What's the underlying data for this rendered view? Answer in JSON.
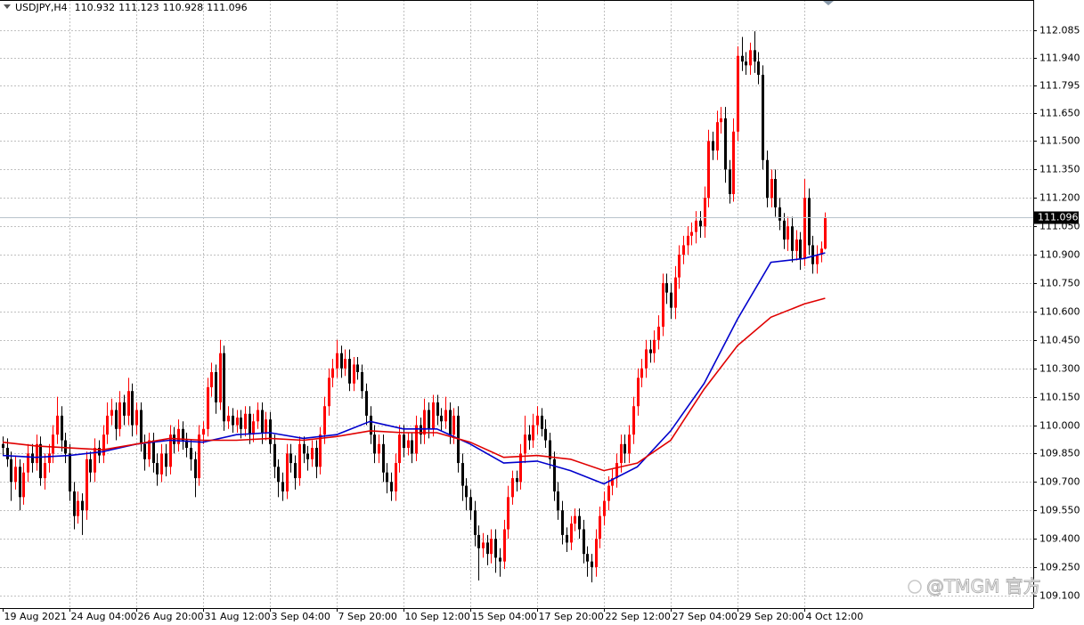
{
  "chart_data": {
    "type": "candlestick",
    "symbol": "USDJPY,H4",
    "header_values": [
      110.932,
      111.123,
      110.928,
      111.096
    ],
    "current_price": 111.096,
    "watermark": "@TMGM 官方",
    "up_color": "#ff0000",
    "down_color": "#000000",
    "grid": true,
    "ylim": [
      109.034,
      112.245
    ],
    "yticks": [
      112.085,
      {
        "value": 111.94,
        "label": "111.940"
      },
      111.795,
      {
        "value": 111.65,
        "label": "111.650"
      },
      {
        "value": 111.5,
        "label": "111.500"
      },
      {
        "value": 111.35,
        "label": "111.350"
      },
      {
        "value": 111.2,
        "label": "111.200"
      },
      {
        "value": 111.05,
        "label": "111.050"
      },
      {
        "value": 110.9,
        "label": "110.900"
      },
      {
        "value": 110.75,
        "label": "110.750"
      },
      {
        "value": 110.6,
        "label": "110.600"
      },
      {
        "value": 110.45,
        "label": "110.450"
      },
      {
        "value": 110.3,
        "label": "110.300"
      },
      {
        "value": 110.15,
        "label": "110.150"
      },
      {
        "value": 110,
        "label": "110.000"
      },
      {
        "value": 109.85,
        "label": "109.850"
      },
      {
        "value": 109.7,
        "label": "109.700"
      },
      {
        "value": 109.55,
        "label": "109.550"
      },
      {
        "value": 109.4,
        "label": "109.400"
      },
      {
        "value": 109.25,
        "label": "109.250"
      },
      {
        "value": 109.1,
        "label": "109.100"
      }
    ],
    "categories": [
      "19 Aug 2021",
      null,
      null,
      null,
      null,
      null,
      null,
      null,
      null,
      null,
      null,
      null,
      null,
      null,
      null,
      null,
      "24 Aug 04:00",
      null,
      null,
      null,
      null,
      null,
      null,
      null,
      null,
      null,
      null,
      null,
      null,
      null,
      null,
      null,
      "26 Aug 20:00",
      null,
      null,
      null,
      null,
      null,
      null,
      null,
      null,
      null,
      null,
      null,
      null,
      null,
      null,
      null,
      "31 Aug 12:00",
      null,
      null,
      null,
      null,
      null,
      null,
      null,
      null,
      null,
      null,
      null,
      null,
      null,
      null,
      null,
      "3 Sep 04:00",
      null,
      null,
      null,
      null,
      null,
      null,
      null,
      null,
      null,
      null,
      null,
      null,
      null,
      null,
      null,
      "7 Sep 20:00",
      null,
      null,
      null,
      null,
      null,
      null,
      null,
      null,
      null,
      null,
      null,
      null,
      null,
      null,
      null,
      "10 Sep 12:00",
      null,
      null,
      null,
      null,
      null,
      null,
      null,
      null,
      null,
      null,
      null,
      null,
      null,
      null,
      null,
      "15 Sep 04:00",
      null,
      null,
      null,
      null,
      null,
      null,
      null,
      null,
      null,
      null,
      null,
      null,
      null,
      null,
      null,
      "17 Sep 20:00",
      null,
      null,
      null,
      null,
      null,
      null,
      null,
      null,
      null,
      null,
      null,
      null,
      null,
      null,
      null,
      "22 Sep 12:00",
      null,
      null,
      null,
      null,
      null,
      null,
      null,
      null,
      null,
      null,
      null,
      null,
      null,
      null,
      null,
      "27 Sep 04:00",
      null,
      null,
      null,
      null,
      null,
      null,
      null,
      null,
      null,
      null,
      null,
      null,
      null,
      null,
      null,
      "29 Sep 20:00",
      null,
      null,
      null,
      null,
      null,
      null,
      null,
      null,
      null,
      null,
      null,
      null,
      null,
      null,
      null,
      "4 Oct 12:00",
      null,
      null,
      null,
      null,
      null
    ],
    "open": [
      109.9,
      109.88,
      109.82,
      109.7,
      109.78,
      109.62,
      109.75,
      109.85,
      109.8,
      109.9,
      109.72,
      109.8,
      109.85,
      109.95,
      110.05,
      109.92,
      109.85,
      109.65,
      109.52,
      109.6,
      109.55,
      109.82,
      109.75,
      109.88,
      109.84,
      109.95,
      110.05,
      110.08,
      109.98,
      110.12,
      110.05,
      110.18,
      110.0,
      110.08,
      109.9,
      109.82,
      109.92,
      109.8,
      109.74,
      109.85,
      109.78,
      109.95,
      109.9,
      109.98,
      109.92,
      109.88,
      109.82,
      109.72,
      109.95,
      109.98,
      110.2,
      110.28,
      110.12,
      110.38,
      110.02,
      110.05,
      110.0,
      110.04,
      109.98,
      110.06,
      109.95,
      110.02,
      110.08,
      109.96,
      110.03,
      109.9,
      109.78,
      109.7,
      109.65,
      109.85,
      109.8,
      109.72,
      109.9,
      109.85,
      109.82,
      109.88,
      109.78,
      109.95,
      110.1,
      110.25,
      110.3,
      110.38,
      110.3,
      110.35,
      110.22,
      110.32,
      110.28,
      110.18,
      110.05,
      109.95,
      109.85,
      109.9,
      109.75,
      109.7,
      109.65,
      109.8,
      109.95,
      109.88,
      109.92,
      109.85,
      110.0,
      109.95,
      110.08,
      109.98,
      110.12,
      110.05,
      110.02,
      110.08,
      109.95,
      110.05,
      109.8,
      109.68,
      109.62,
      109.55,
      109.42,
      109.35,
      109.38,
      109.32,
      109.4,
      109.3,
      109.28,
      109.45,
      109.62,
      109.72,
      109.7,
      109.85,
      109.95,
      109.92,
      110.0,
      110.05,
      109.98,
      109.92,
      109.82,
      109.65,
      109.55,
      109.42,
      109.38,
      109.48,
      109.52,
      109.45,
      109.32,
      109.28,
      109.25,
      109.4,
      109.52,
      109.6,
      109.68,
      109.72,
      109.8,
      109.9,
      109.85,
      109.95,
      110.1,
      110.25,
      110.3,
      110.4,
      110.38,
      110.45,
      110.52,
      110.75,
      110.7,
      110.62,
      110.78,
      110.9,
      110.95,
      111.0,
      111.02,
      111.08,
      111.05,
      111.2,
      111.5,
      111.45,
      111.6,
      111.62,
      111.35,
      111.22,
      111.55,
      111.95,
      111.92,
      111.9,
      111.98,
      111.92,
      111.85,
      111.4,
      111.2,
      111.3,
      111.15,
      111.08,
      110.98,
      111.05,
      110.92,
      110.98,
      110.88,
      111.2,
      110.95,
      110.85,
      110.9,
      110.932
    ],
    "high": [
      109.94,
      109.93,
      109.86,
      109.84,
      109.82,
      109.8,
      109.9,
      109.9,
      109.95,
      109.94,
      109.85,
      109.9,
      110.0,
      110.15,
      110.1,
      109.96,
      109.9,
      109.7,
      109.65,
      109.64,
      109.86,
      109.86,
      109.93,
      109.92,
      110.0,
      110.12,
      110.14,
      110.12,
      110.18,
      110.16,
      110.25,
      110.22,
      110.12,
      110.12,
      109.95,
      109.96,
      109.96,
      109.85,
      109.9,
      109.9,
      110.0,
      109.99,
      110.03,
      110.02,
      109.96,
      109.92,
      109.86,
      110.0,
      110.02,
      110.25,
      110.33,
      110.32,
      110.45,
      110.42,
      110.1,
      110.09,
      110.08,
      110.08,
      110.1,
      110.1,
      110.06,
      110.12,
      110.12,
      110.07,
      110.07,
      109.95,
      109.82,
      109.75,
      109.9,
      109.9,
      109.84,
      109.94,
      109.94,
      109.89,
      109.92,
      109.92,
      109.99,
      110.15,
      110.3,
      110.35,
      110.45,
      110.42,
      110.4,
      110.4,
      110.36,
      110.36,
      110.32,
      110.22,
      110.1,
      110.0,
      109.95,
      109.95,
      109.8,
      109.75,
      109.85,
      110.0,
      110.0,
      109.96,
      109.96,
      110.05,
      110.04,
      110.14,
      110.12,
      110.16,
      110.16,
      110.09,
      110.15,
      110.12,
      110.09,
      110.1,
      109.85,
      109.72,
      109.66,
      109.6,
      109.47,
      109.43,
      109.42,
      109.45,
      109.45,
      109.35,
      109.5,
      109.68,
      109.76,
      109.76,
      109.9,
      110.05,
      110.0,
      110.06,
      110.1,
      110.09,
      110.03,
      109.96,
      109.86,
      109.7,
      109.6,
      109.46,
      109.52,
      109.56,
      109.56,
      109.5,
      109.36,
      109.32,
      109.45,
      109.57,
      109.65,
      109.73,
      109.77,
      109.85,
      109.95,
      109.95,
      110.0,
      110.15,
      110.3,
      110.35,
      110.45,
      110.45,
      110.5,
      110.58,
      110.8,
      110.8,
      110.75,
      110.84,
      110.95,
      111.0,
      111.05,
      111.07,
      111.13,
      111.13,
      111.26,
      111.56,
      111.55,
      111.66,
      111.68,
      111.68,
      111.4,
      111.62,
      112.0,
      112.05,
      111.97,
      112.02,
      112.08,
      111.97,
      111.9,
      111.45,
      111.35,
      111.35,
      111.2,
      111.12,
      111.1,
      111.1,
      111.03,
      111.02,
      111.3,
      111.25,
      111.0,
      110.95,
      110.97,
      111.123
    ],
    "low": [
      109.84,
      109.78,
      109.6,
      109.66,
      109.55,
      109.58,
      109.7,
      109.75,
      109.76,
      109.68,
      109.66,
      109.75,
      109.8,
      109.9,
      109.86,
      109.8,
      109.6,
      109.45,
      109.48,
      109.42,
      109.5,
      109.7,
      109.7,
      109.8,
      109.8,
      109.9,
      110.0,
      109.92,
      109.94,
      110.0,
      110.0,
      109.94,
      109.95,
      109.86,
      109.76,
      109.78,
      109.75,
      109.68,
      109.7,
      109.73,
      109.74,
      109.85,
      109.86,
      109.87,
      109.83,
      109.76,
      109.62,
      109.68,
      109.9,
      109.94,
      110.15,
      110.06,
      110.08,
      109.97,
      109.98,
      109.96,
      109.96,
      109.93,
      109.94,
      109.9,
      109.91,
      109.98,
      109.9,
      109.92,
      109.85,
      109.72,
      109.62,
      109.6,
      109.61,
      109.75,
      109.66,
      109.68,
      109.8,
      109.76,
      109.78,
      109.72,
      109.74,
      109.9,
      110.05,
      110.2,
      110.25,
      110.25,
      110.26,
      110.18,
      110.18,
      110.24,
      110.14,
      110.0,
      109.9,
      109.8,
      109.8,
      109.7,
      109.64,
      109.6,
      109.6,
      109.75,
      109.83,
      109.84,
      109.8,
      109.81,
      109.9,
      109.9,
      109.93,
      109.94,
      110.0,
      109.97,
      109.98,
      109.9,
      109.9,
      109.75,
      109.6,
      109.55,
      109.5,
      109.36,
      109.18,
      109.3,
      109.26,
      109.27,
      109.22,
      109.2,
      109.24,
      109.4,
      109.58,
      109.65,
      109.66,
      109.8,
      109.87,
      109.88,
      109.95,
      109.94,
      109.88,
      109.77,
      109.6,
      109.5,
      109.37,
      109.33,
      109.34,
      109.44,
      109.4,
      109.27,
      109.2,
      109.17,
      109.2,
      109.35,
      109.47,
      109.55,
      109.63,
      109.67,
      109.75,
      109.8,
      109.8,
      109.9,
      110.05,
      110.2,
      110.25,
      110.33,
      110.33,
      110.4,
      110.47,
      110.64,
      110.56,
      110.56,
      110.72,
      110.85,
      110.9,
      110.95,
      110.96,
      110.99,
      110.99,
      111.15,
      111.4,
      111.4,
      111.54,
      111.28,
      111.17,
      111.18,
      111.5,
      111.87,
      111.85,
      111.85,
      111.86,
      111.8,
      111.35,
      111.15,
      111.15,
      111.1,
      111.03,
      110.93,
      110.92,
      110.86,
      110.87,
      110.82,
      110.84,
      110.9,
      110.8,
      110.8,
      110.86,
      110.928
    ],
    "close": [
      109.88,
      109.82,
      109.7,
      109.78,
      109.62,
      109.75,
      109.85,
      109.8,
      109.9,
      109.72,
      109.8,
      109.85,
      109.95,
      110.05,
      109.92,
      109.85,
      109.65,
      109.52,
      109.6,
      109.55,
      109.82,
      109.75,
      109.88,
      109.84,
      109.95,
      110.05,
      110.08,
      109.98,
      110.12,
      110.05,
      110.18,
      110.0,
      110.08,
      109.9,
      109.82,
      109.92,
      109.8,
      109.74,
      109.85,
      109.78,
      109.95,
      109.9,
      109.98,
      109.92,
      109.88,
      109.82,
      109.72,
      109.95,
      109.98,
      110.2,
      110.28,
      110.12,
      110.38,
      110.02,
      110.05,
      110.0,
      110.04,
      109.98,
      110.06,
      109.95,
      110.02,
      110.08,
      109.96,
      110.03,
      109.9,
      109.78,
      109.7,
      109.65,
      109.85,
      109.8,
      109.72,
      109.9,
      109.85,
      109.82,
      109.88,
      109.78,
      109.95,
      110.1,
      110.25,
      110.3,
      110.38,
      110.3,
      110.35,
      110.22,
      110.32,
      110.28,
      110.18,
      110.05,
      109.95,
      109.85,
      109.9,
      109.75,
      109.7,
      109.65,
      109.8,
      109.95,
      109.88,
      109.92,
      109.85,
      110.0,
      109.95,
      110.08,
      109.98,
      110.12,
      110.05,
      110.02,
      110.08,
      109.95,
      110.05,
      109.8,
      109.68,
      109.62,
      109.55,
      109.42,
      109.35,
      109.38,
      109.32,
      109.4,
      109.3,
      109.28,
      109.45,
      109.62,
      109.72,
      109.7,
      109.85,
      109.95,
      109.92,
      110.0,
      110.05,
      109.98,
      109.92,
      109.82,
      109.65,
      109.55,
      109.42,
      109.38,
      109.48,
      109.52,
      109.45,
      109.32,
      109.28,
      109.25,
      109.4,
      109.52,
      109.6,
      109.68,
      109.72,
      109.8,
      109.9,
      109.85,
      109.95,
      110.1,
      110.25,
      110.3,
      110.4,
      110.38,
      110.45,
      110.52,
      110.75,
      110.7,
      110.62,
      110.78,
      110.9,
      110.95,
      111.0,
      111.02,
      111.08,
      111.05,
      111.2,
      111.5,
      111.45,
      111.6,
      111.62,
      111.35,
      111.22,
      111.55,
      111.95,
      111.92,
      111.9,
      111.98,
      111.92,
      111.85,
      111.4,
      111.2,
      111.3,
      111.15,
      111.08,
      110.98,
      111.05,
      110.92,
      110.98,
      110.88,
      111.2,
      110.95,
      110.85,
      110.9,
      110.932,
      111.096
    ],
    "series": [
      {
        "color": "#0000cc",
        "x": [
          0,
          8,
          16,
          24,
          32,
          40,
          48,
          56,
          64,
          72,
          80,
          88,
          96,
          104,
          112,
          120,
          128,
          136,
          144,
          152,
          160,
          168,
          176,
          184,
          192,
          197
        ],
        "values": [
          109.84,
          109.83,
          109.84,
          109.86,
          109.9,
          109.92,
          109.91,
          109.95,
          109.96,
          109.93,
          109.95,
          110.02,
          109.98,
          109.98,
          109.9,
          109.8,
          109.81,
          109.76,
          109.69,
          109.78,
          109.97,
          110.22,
          110.56,
          110.86,
          110.88,
          110.91
        ]
      },
      {
        "color": "#e00000",
        "x": [
          0,
          8,
          16,
          24,
          32,
          40,
          48,
          56,
          64,
          72,
          80,
          88,
          96,
          104,
          112,
          120,
          128,
          136,
          144,
          152,
          160,
          168,
          176,
          184,
          192,
          197
        ],
        "values": [
          109.91,
          109.89,
          109.88,
          109.87,
          109.9,
          109.93,
          109.92,
          109.92,
          109.93,
          109.92,
          109.94,
          109.97,
          109.96,
          109.96,
          109.91,
          109.83,
          109.84,
          109.82,
          109.76,
          109.8,
          109.92,
          110.19,
          110.42,
          110.57,
          110.64,
          110.67
        ]
      }
    ]
  }
}
